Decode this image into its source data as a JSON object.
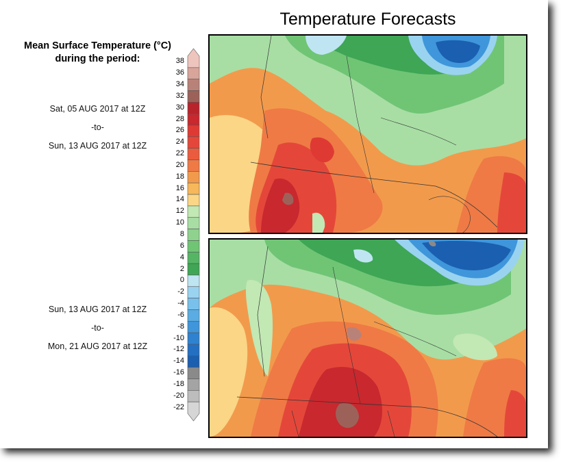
{
  "title": "Temperature Forecasts",
  "legend": {
    "heading_line1": "Mean Surface Temperature (°C)",
    "heading_line2": "during the period:",
    "ticks": [
      "38",
      "36",
      "34",
      "32",
      "30",
      "28",
      "26",
      "24",
      "22",
      "20",
      "18",
      "16",
      "14",
      "12",
      "10",
      "8",
      "6",
      "4",
      "2",
      "0",
      "-2",
      "-4",
      "-6",
      "-8",
      "-10",
      "-12",
      "-14",
      "-16",
      "-18",
      "-20",
      "-22"
    ],
    "colors": {
      "38": "#eec5bd",
      "36": "#d9a49a",
      "34": "#b98279",
      "32": "#9c625a",
      "30": "#b8242a",
      "28": "#c8282e",
      "26": "#de3a33",
      "24": "#e4473a",
      "22": "#eb5c3e",
      "20": "#ef7a45",
      "18": "#f29a4c",
      "16": "#f6b85a",
      "14": "#fad686",
      "12": "#c2e8b4",
      "10": "#a8dea4",
      "8": "#8fd28e",
      "6": "#70c575",
      "4": "#55b565",
      "2": "#3ea655",
      "0": "#bfe5f2",
      "-2": "#9ad3f0",
      "-4": "#78c1ec",
      "-6": "#5aace3",
      "-8": "#3f96da",
      "-10": "#2f82cf",
      "-12": "#2370c2",
      "-14": "#1b5fb0",
      "-16": "#8a8a8a",
      "-18": "#a4a4a4",
      "-20": "#bdbdbd",
      "-22": "#d6d6d6"
    }
  },
  "periods": [
    {
      "start": "Sat, 05 AUG 2017 at 12Z",
      "sep": "-to-",
      "end": "Sun, 13 AUG 2017 at 12Z"
    },
    {
      "start": "Sun, 13 AUG 2017 at 12Z",
      "sep": "-to-",
      "end": "Mon, 21 AUG 2017 at 12Z"
    }
  ]
}
